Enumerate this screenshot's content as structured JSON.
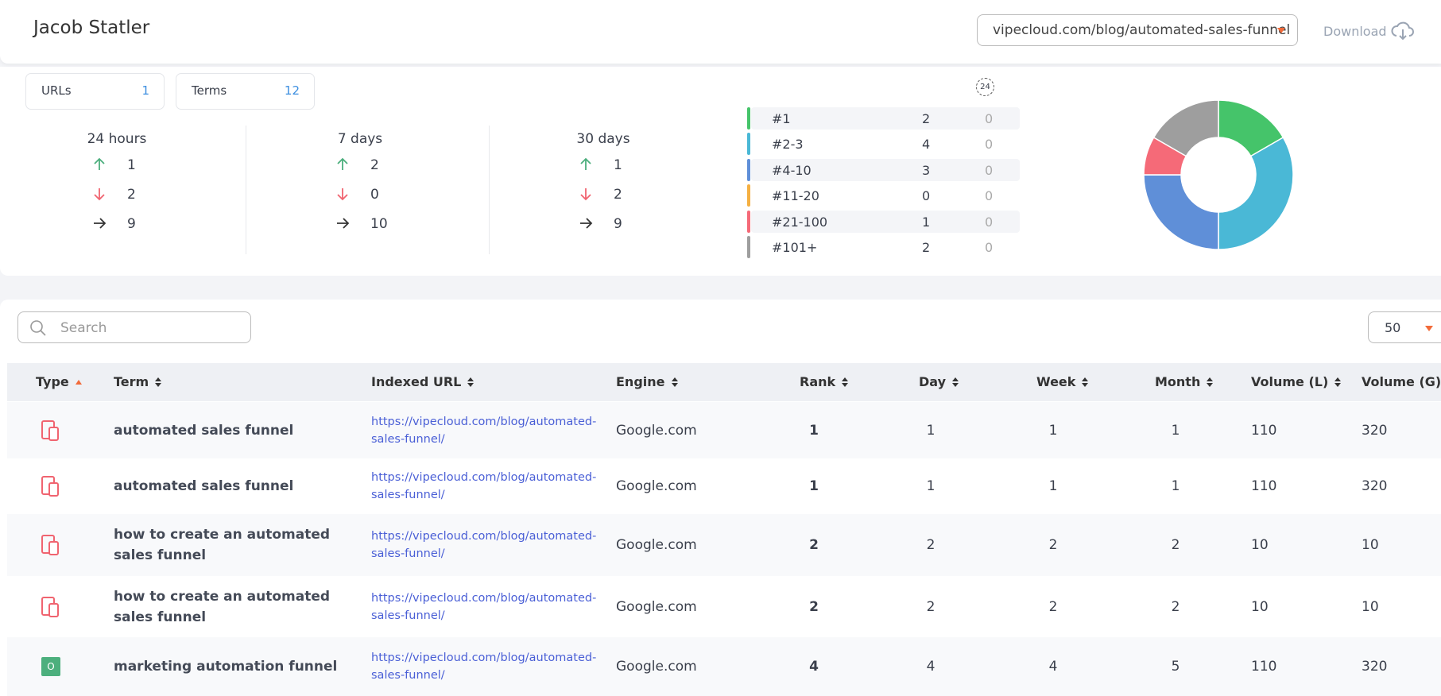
{
  "header": {
    "title": "Jacob Statler",
    "url_select": "vipecloud.com/blog/automated-sales-funnel",
    "download": "Download"
  },
  "counters": [
    {
      "label": "URLs",
      "value": 1
    },
    {
      "label": "Terms",
      "value": 12
    }
  ],
  "periods": [
    {
      "label": "24 hours",
      "up": 1,
      "down": 2,
      "same": 9
    },
    {
      "label": "7 days",
      "up": 2,
      "down": 0,
      "same": 10
    },
    {
      "label": "30 days",
      "up": 1,
      "down": 2,
      "same": 9
    }
  ],
  "distribution_badge": "24",
  "distribution": {
    "type": "pie",
    "categories": [
      "#1",
      "#2-3",
      "#4-10",
      "#11-20",
      "#21-100",
      "#101+"
    ],
    "values": [
      2,
      4,
      3,
      0,
      1,
      2
    ],
    "changes": [
      0,
      0,
      0,
      0,
      0,
      0
    ],
    "colors": [
      "#45c46a",
      "#4ab8d6",
      "#5f8fd8",
      "#f5b042",
      "#f56a78",
      "#9e9e9e"
    ]
  },
  "search": {
    "placeholder": "Search"
  },
  "page_size": 50,
  "table": {
    "columns": [
      "Type",
      "Term",
      "Indexed URL",
      "Engine",
      "Rank",
      "Day",
      "Week",
      "Month",
      "Volume (L)",
      "Volume (G)"
    ],
    "rows": [
      {
        "cells": [
          "automated sales funnel",
          "https://vipecloud.com/blog/automated-sales-funnel/",
          "Google.com",
          1,
          1,
          1,
          1,
          110,
          320
        ]
      },
      {
        "cells": [
          "automated sales funnel",
          "https://vipecloud.com/blog/automated-sales-funnel/",
          "Google.com",
          1,
          1,
          1,
          1,
          110,
          320
        ]
      },
      {
        "cells": [
          "how to create an automated sales funnel",
          "https://vipecloud.com/blog/automated-sales-funnel/",
          "Google.com",
          2,
          2,
          2,
          2,
          10,
          10
        ]
      },
      {
        "cells": [
          "how to create an automated sales funnel",
          "https://vipecloud.com/blog/automated-sales-funnel/",
          "Google.com",
          2,
          2,
          2,
          2,
          10,
          10
        ]
      },
      {
        "badge": "O",
        "cells": [
          "marketing automation funnel",
          "https://vipecloud.com/blog/automated-sales-funnel/",
          "Google.com",
          4,
          4,
          4,
          5,
          110,
          320
        ]
      }
    ]
  }
}
